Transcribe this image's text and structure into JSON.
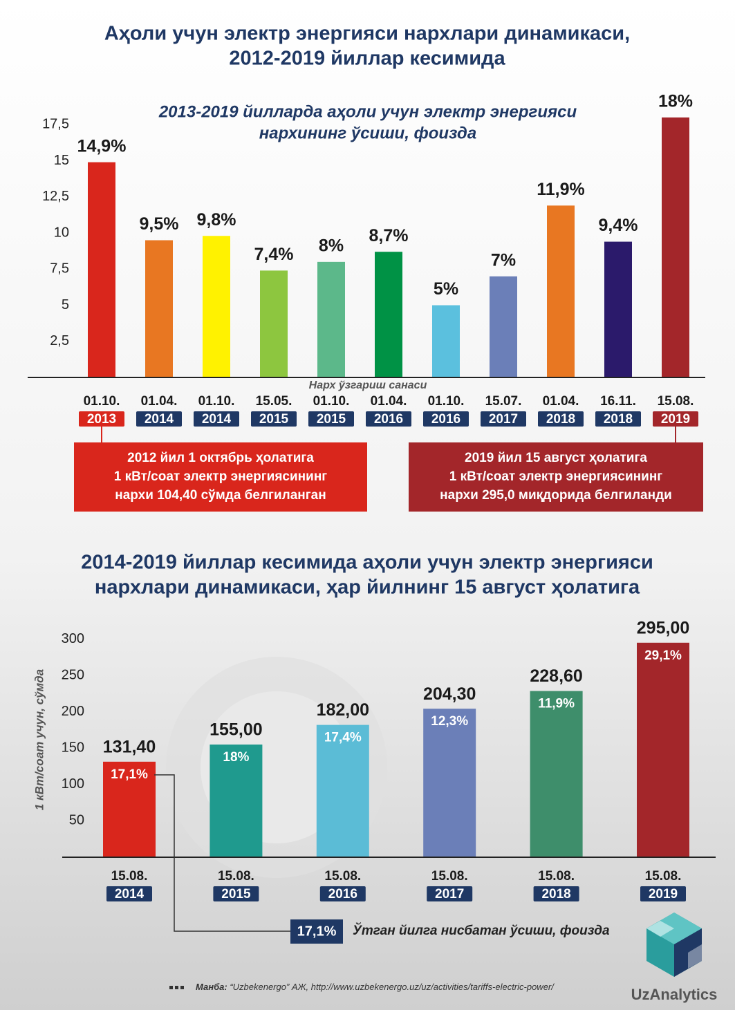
{
  "chart_data": [
    {
      "type": "bar",
      "title": [
        "Аҳоли учун электр энергияси нархлари динамикаси,",
        "2012-2019 йиллар кесимида"
      ],
      "subtitle": [
        "2013-2019 йилларда аҳоли учун электр энергияси",
        "нархининг ўсиши, фоизда"
      ],
      "xlabel": "Нарх ўзгариш санаси",
      "categories": [
        [
          "01.10.",
          "2013"
        ],
        [
          "01.04.",
          "2014"
        ],
        [
          "01.10.",
          "2014"
        ],
        [
          "15.05.",
          "2015"
        ],
        [
          "01.10.",
          "2015"
        ],
        [
          "01.04.",
          "2016"
        ],
        [
          "01.10.",
          "2016"
        ],
        [
          "15.07.",
          "2017"
        ],
        [
          "01.04.",
          "2018"
        ],
        [
          "16.11.",
          "2018"
        ],
        [
          "15.08.",
          "2019"
        ]
      ],
      "values": [
        14.9,
        9.5,
        9.8,
        7.4,
        8,
        8.7,
        5,
        7,
        11.9,
        9.4,
        18
      ],
      "value_labels": [
        "14,9%",
        "9,5%",
        "9,8%",
        "7,4%",
        "8%",
        "8,7%",
        "5%",
        "7%",
        "11,9%",
        "9,4%",
        "18%"
      ],
      "colors": [
        "#d9261c",
        "#e87722",
        "#fff200",
        "#8dc63f",
        "#5cb88a",
        "#009245",
        "#5bc0de",
        "#6b7fb8",
        "#e87722",
        "#2b1a6b",
        "#a3262a"
      ],
      "year_box_colors": [
        "#d9261c",
        "#1f3864",
        "#1f3864",
        "#1f3864",
        "#1f3864",
        "#1f3864",
        "#1f3864",
        "#1f3864",
        "#1f3864",
        "#1f3864",
        "#a3262a"
      ],
      "ylim": [
        0,
        19
      ],
      "yticks": [
        {
          "value": 2.5,
          "label": "2,5"
        },
        5,
        {
          "value": 7.5,
          "label": "7,5"
        },
        10,
        {
          "value": 12.5,
          "label": "12,5"
        },
        15,
        {
          "value": 17.5,
          "label": "17,5"
        }
      ],
      "grid": false,
      "notes": [
        {
          "color": "#d9261c",
          "lines": [
            "2012 йил 1 октябрь ҳолатига",
            "1 кВт/соат электр энергиясининг",
            "нархи 104,40 сўмда белгиланган"
          ]
        },
        {
          "color": "#a3262a",
          "lines": [
            "2019 йил 15 август ҳолатига",
            "1 кВт/соат электр энергиясининг",
            "нархи 295,0 миқдорида белгиланди"
          ]
        }
      ]
    },
    {
      "type": "bar",
      "title": [
        "2014-2019 йиллар кесимида аҳоли учун электр энергияси",
        "нархлари динамикаси, ҳар йилнинг 15 август ҳолатига"
      ],
      "ylabel": "1 кВт/соат учун, сўмда",
      "categories": [
        [
          "15.08.",
          "2014"
        ],
        [
          "15.08.",
          "2015"
        ],
        [
          "15.08.",
          "2016"
        ],
        [
          "15.08.",
          "2017"
        ],
        [
          "15.08.",
          "2018"
        ],
        [
          "15.08.",
          "2019"
        ]
      ],
      "values": [
        131.4,
        155,
        182,
        204.3,
        228.6,
        295
      ],
      "value_labels": [
        "131,40",
        "155,00",
        "182,00",
        "204,30",
        "228,60",
        "295,00"
      ],
      "colors": [
        "#d9261c",
        "#1f9a8e",
        "#5bbcd6",
        "#6b7fb8",
        "#3e8e6b",
        "#a3262a"
      ],
      "year_box_colors": [
        "#1f3864",
        "#1f3864",
        "#1f3864",
        "#1f3864",
        "#1f3864",
        "#1f3864"
      ],
      "growth": {
        "name": "Ўтган йилга нисбатан ўсиши, фоизда",
        "values": [
          17.1,
          18,
          17.4,
          12.3,
          11.9,
          29.1
        ],
        "value_labels": [
          "17,1%",
          "18%",
          "17,4%",
          "12,3%",
          "11,9%",
          "29,1%"
        ]
      },
      "ylim": [
        0,
        310
      ],
      "yticks": [
        50,
        100,
        150,
        200,
        250,
        300
      ],
      "grid": false
    }
  ],
  "source": {
    "label": "Манба:",
    "text": "“Uzbekenergo” АЖ, http://www.uzbekenergo.uz/uz/activities/tariffs-electric-power/"
  },
  "brand": "UzAnalytics"
}
